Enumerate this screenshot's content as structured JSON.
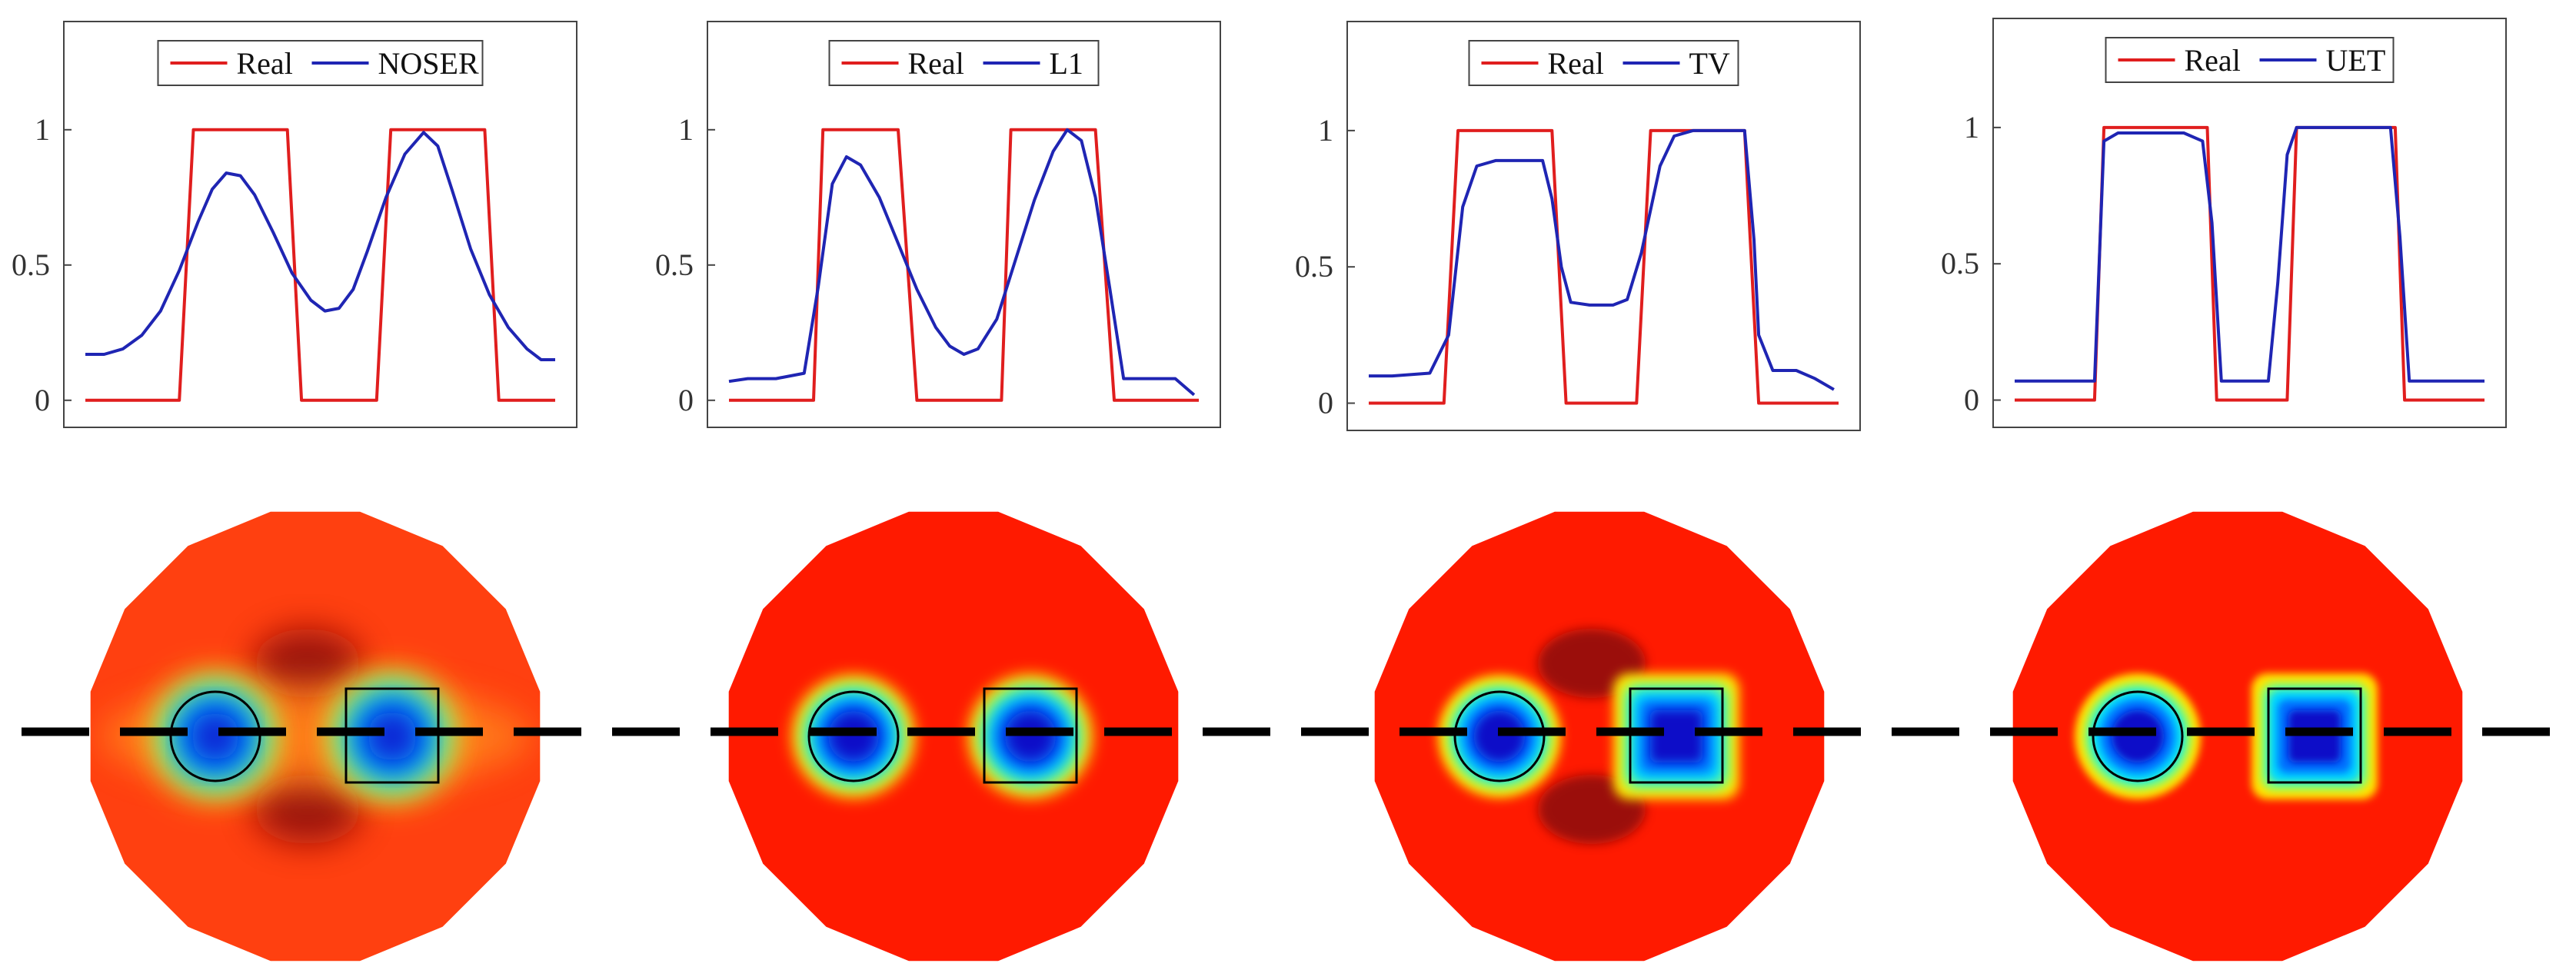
{
  "colors": {
    "real": "#e01e1e",
    "estimate": "#1f25b3",
    "axis": "#444444",
    "map_background": "#ff1a00",
    "dark_red": "#8a0e0e",
    "blue_core": "#1010c8",
    "dashed_line": "#000000"
  },
  "chart_data": [
    {
      "type": "line",
      "title": "",
      "xlabel": "",
      "ylabel": "",
      "xlim": [
        0,
        1
      ],
      "ylim": [
        -0.1,
        1.4
      ],
      "yticks": [
        "0",
        "0.5",
        "1"
      ],
      "legend": {
        "placement": "top-center",
        "entries": [
          "Real",
          "NOSER"
        ]
      },
      "series": [
        {
          "name": "Real",
          "points": [
            [
              0,
              0
            ],
            [
              0.2,
              0
            ],
            [
              0.23,
              1
            ],
            [
              0.43,
              1
            ],
            [
              0.46,
              0
            ],
            [
              0.62,
              0
            ],
            [
              0.65,
              1
            ],
            [
              0.85,
              1
            ],
            [
              0.88,
              0
            ],
            [
              1,
              0
            ]
          ]
        },
        {
          "name": "NOSER",
          "points": [
            [
              0,
              0.17
            ],
            [
              0.04,
              0.17
            ],
            [
              0.08,
              0.19
            ],
            [
              0.12,
              0.24
            ],
            [
              0.16,
              0.33
            ],
            [
              0.2,
              0.48
            ],
            [
              0.24,
              0.66
            ],
            [
              0.27,
              0.78
            ],
            [
              0.3,
              0.84
            ],
            [
              0.33,
              0.83
            ],
            [
              0.36,
              0.76
            ],
            [
              0.4,
              0.62
            ],
            [
              0.44,
              0.47
            ],
            [
              0.48,
              0.37
            ],
            [
              0.51,
              0.33
            ],
            [
              0.54,
              0.34
            ],
            [
              0.57,
              0.41
            ],
            [
              0.6,
              0.55
            ],
            [
              0.64,
              0.75
            ],
            [
              0.68,
              0.91
            ],
            [
              0.72,
              0.99
            ],
            [
              0.75,
              0.94
            ],
            [
              0.78,
              0.78
            ],
            [
              0.82,
              0.56
            ],
            [
              0.86,
              0.39
            ],
            [
              0.9,
              0.27
            ],
            [
              0.94,
              0.19
            ],
            [
              0.97,
              0.15
            ],
            [
              1,
              0.15
            ]
          ]
        }
      ]
    },
    {
      "type": "line",
      "title": "",
      "xlabel": "",
      "ylabel": "",
      "xlim": [
        0,
        1
      ],
      "ylim": [
        -0.1,
        1.4
      ],
      "yticks": [
        "0",
        "0.5",
        "1"
      ],
      "legend": {
        "placement": "top-center",
        "entries": [
          "Real",
          "L1"
        ]
      },
      "series": [
        {
          "name": "Real",
          "points": [
            [
              0,
              0
            ],
            [
              0.18,
              0
            ],
            [
              0.2,
              1
            ],
            [
              0.36,
              1
            ],
            [
              0.4,
              0
            ],
            [
              0.58,
              0
            ],
            [
              0.6,
              1
            ],
            [
              0.78,
              1
            ],
            [
              0.82,
              0
            ],
            [
              1,
              0
            ]
          ]
        },
        {
          "name": "L1",
          "points": [
            [
              0,
              0.07
            ],
            [
              0.04,
              0.08
            ],
            [
              0.1,
              0.08
            ],
            [
              0.16,
              0.1
            ],
            [
              0.19,
              0.42
            ],
            [
              0.22,
              0.8
            ],
            [
              0.25,
              0.9
            ],
            [
              0.28,
              0.87
            ],
            [
              0.32,
              0.75
            ],
            [
              0.36,
              0.58
            ],
            [
              0.4,
              0.41
            ],
            [
              0.44,
              0.27
            ],
            [
              0.47,
              0.2
            ],
            [
              0.5,
              0.17
            ],
            [
              0.53,
              0.19
            ],
            [
              0.57,
              0.3
            ],
            [
              0.61,
              0.52
            ],
            [
              0.65,
              0.74
            ],
            [
              0.69,
              0.92
            ],
            [
              0.72,
              1.0
            ],
            [
              0.75,
              0.96
            ],
            [
              0.78,
              0.75
            ],
            [
              0.81,
              0.42
            ],
            [
              0.84,
              0.08
            ],
            [
              0.95,
              0.08
            ],
            [
              0.99,
              0.02
            ]
          ]
        }
      ]
    },
    {
      "type": "line",
      "title": "",
      "xlabel": "",
      "ylabel": "",
      "xlim": [
        0,
        1
      ],
      "ylim": [
        -0.1,
        1.4
      ],
      "yticks": [
        "0",
        "0.5",
        "1"
      ],
      "legend": {
        "placement": "top-center",
        "entries": [
          "Real",
          "TV"
        ]
      },
      "series": [
        {
          "name": "Real",
          "points": [
            [
              0,
              0
            ],
            [
              0.16,
              0
            ],
            [
              0.19,
              1
            ],
            [
              0.39,
              1
            ],
            [
              0.42,
              0
            ],
            [
              0.57,
              0
            ],
            [
              0.6,
              1
            ],
            [
              0.8,
              1
            ],
            [
              0.83,
              0
            ],
            [
              1,
              0
            ]
          ]
        },
        {
          "name": "TV",
          "points": [
            [
              0,
              0.1
            ],
            [
              0.05,
              0.1
            ],
            [
              0.13,
              0.11
            ],
            [
              0.17,
              0.25
            ],
            [
              0.2,
              0.72
            ],
            [
              0.23,
              0.87
            ],
            [
              0.27,
              0.89
            ],
            [
              0.37,
              0.89
            ],
            [
              0.39,
              0.75
            ],
            [
              0.41,
              0.5
            ],
            [
              0.43,
              0.37
            ],
            [
              0.47,
              0.36
            ],
            [
              0.52,
              0.36
            ],
            [
              0.55,
              0.38
            ],
            [
              0.58,
              0.55
            ],
            [
              0.62,
              0.87
            ],
            [
              0.65,
              0.98
            ],
            [
              0.69,
              1.0
            ],
            [
              0.8,
              1.0
            ],
            [
              0.82,
              0.6
            ],
            [
              0.83,
              0.25
            ],
            [
              0.86,
              0.12
            ],
            [
              0.91,
              0.12
            ],
            [
              0.95,
              0.09
            ],
            [
              0.99,
              0.05
            ]
          ]
        }
      ]
    },
    {
      "type": "line",
      "title": "",
      "xlabel": "",
      "ylabel": "",
      "xlim": [
        0,
        1
      ],
      "ylim": [
        -0.1,
        1.4
      ],
      "yticks": [
        "0",
        "0.5",
        "1"
      ],
      "legend": {
        "placement": "top-center",
        "entries": [
          "Real",
          "UET"
        ]
      },
      "series": [
        {
          "name": "Real",
          "points": [
            [
              0,
              0
            ],
            [
              0.17,
              0
            ],
            [
              0.19,
              1
            ],
            [
              0.41,
              1
            ],
            [
              0.43,
              0
            ],
            [
              0.58,
              0
            ],
            [
              0.6,
              1
            ],
            [
              0.81,
              1
            ],
            [
              0.83,
              0
            ],
            [
              1,
              0
            ]
          ]
        },
        {
          "name": "UET",
          "points": [
            [
              0,
              0.07
            ],
            [
              0.16,
              0.07
            ],
            [
              0.17,
              0.07
            ],
            [
              0.19,
              0.95
            ],
            [
              0.22,
              0.98
            ],
            [
              0.36,
              0.98
            ],
            [
              0.4,
              0.95
            ],
            [
              0.42,
              0.65
            ],
            [
              0.44,
              0.07
            ],
            [
              0.54,
              0.07
            ],
            [
              0.56,
              0.43
            ],
            [
              0.58,
              0.9
            ],
            [
              0.6,
              1.0
            ],
            [
              0.8,
              1.0
            ],
            [
              0.82,
              0.6
            ],
            [
              0.84,
              0.07
            ],
            [
              1,
              0.07
            ]
          ]
        }
      ]
    }
  ],
  "maps": [
    {
      "name": "NOSER",
      "style": "blurred",
      "circle_core": 0.7,
      "square_core": 0.9,
      "dark_lobes": true,
      "side_lobes": true
    },
    {
      "name": "L1",
      "style": "sharp",
      "circle_core": 0.8,
      "square_core": 0.85,
      "dark_lobes": false,
      "side_lobes": false
    },
    {
      "name": "TV",
      "style": "blocky",
      "circle_core": 0.85,
      "square_core": 1.0,
      "dark_lobes": true,
      "side_lobes": false
    },
    {
      "name": "UET",
      "style": "crisp",
      "circle_core": 1.0,
      "square_core": 1.0,
      "dark_lobes": false,
      "side_lobes": false
    }
  ]
}
